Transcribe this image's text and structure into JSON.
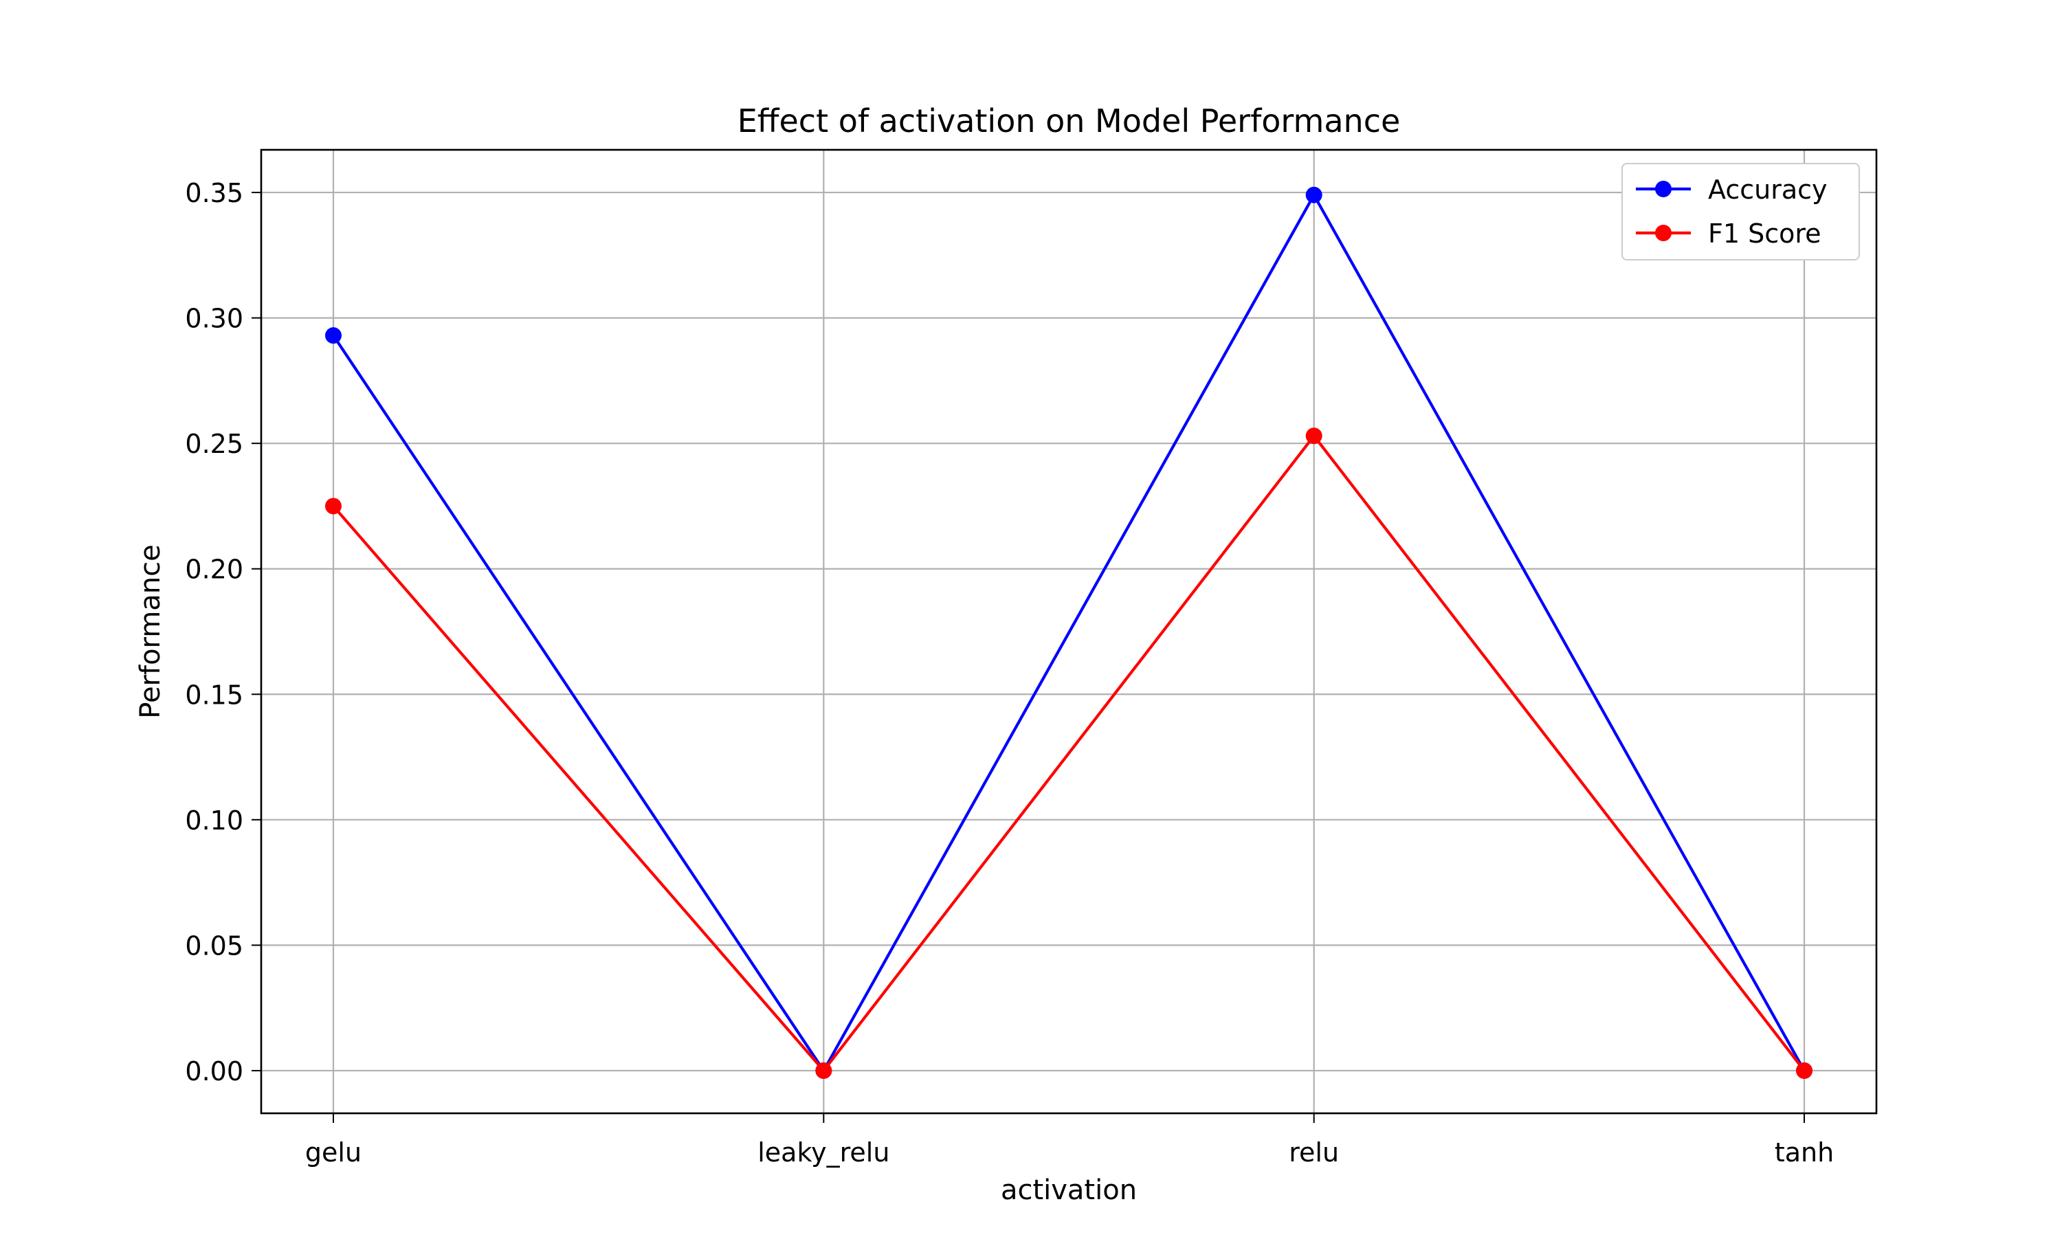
{
  "chart_data": {
    "type": "line",
    "title": "Effect of activation on Model Performance",
    "xlabel": "activation",
    "ylabel": "Performance",
    "categories": [
      "gelu",
      "leaky_relu",
      "relu",
      "tanh"
    ],
    "series": [
      {
        "name": "Accuracy",
        "values": [
          0.293,
          0.0,
          0.349,
          0.0
        ],
        "color": "#0000ff",
        "marker": "circle"
      },
      {
        "name": "F1 Score",
        "values": [
          0.225,
          0.0,
          0.253,
          0.0
        ],
        "color": "#ff0000",
        "marker": "circle"
      }
    ],
    "ylim": [
      -0.017,
      0.367
    ],
    "yticks": [
      0.0,
      0.05,
      0.1,
      0.15,
      0.2,
      0.25,
      0.3,
      0.35
    ],
    "ytick_labels": [
      "0.00",
      "0.05",
      "0.10",
      "0.15",
      "0.20",
      "0.25",
      "0.30",
      "0.35"
    ],
    "grid": true,
    "legend_position": "top-right"
  }
}
